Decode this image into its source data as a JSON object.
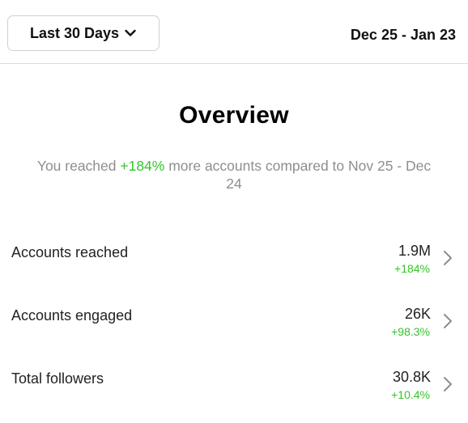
{
  "header": {
    "range_label": "Last 30 Days",
    "date_range": "Dec 25 - Jan 23"
  },
  "overview": {
    "title": "Overview",
    "summary_prefix": "You reached ",
    "summary_change": "+184%",
    "summary_suffix": " more accounts compared to Nov 25 - Dec 24"
  },
  "metrics": [
    {
      "label": "Accounts reached",
      "value": "1.9M",
      "change": "+184%"
    },
    {
      "label": "Accounts engaged",
      "value": "26K",
      "change": "+98.3%"
    },
    {
      "label": "Total followers",
      "value": "30.8K",
      "change": "+10.4%"
    }
  ],
  "colors": {
    "positive": "#35c42b",
    "muted_text": "#8e8e8e",
    "divider": "#dbdbdb"
  },
  "icons": {
    "range_dropdown": "chevron-down-icon",
    "row_arrow": "chevron-right-icon"
  }
}
